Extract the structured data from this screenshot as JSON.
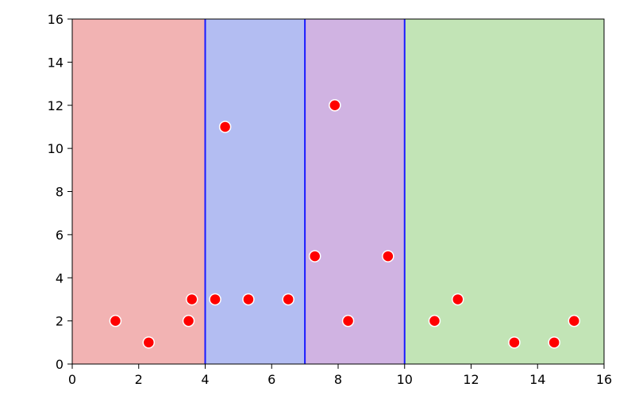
{
  "chart_data": {
    "type": "scatter",
    "title": "",
    "xlabel": "",
    "ylabel": "",
    "xlim": [
      0,
      16
    ],
    "ylim": [
      0,
      16
    ],
    "xticks": [
      0,
      2,
      4,
      6,
      8,
      10,
      12,
      14,
      16
    ],
    "yticks": [
      0,
      2,
      4,
      6,
      8,
      10,
      12,
      14,
      16
    ],
    "grid": false,
    "regions": [
      {
        "x_start": 0,
        "x_end": 4,
        "color": "#f2b3b3"
      },
      {
        "x_start": 4,
        "x_end": 7,
        "color": "#b3bdf2"
      },
      {
        "x_start": 7,
        "x_end": 10,
        "color": "#d0b3e2"
      },
      {
        "x_start": 10,
        "x_end": 16,
        "color": "#c2e4b6"
      }
    ],
    "boundaries": [
      4,
      7,
      10
    ],
    "boundary_color": "#1a1aff",
    "point_color": "#ff0000",
    "points": [
      {
        "x": 1.3,
        "y": 2
      },
      {
        "x": 2.3,
        "y": 1
      },
      {
        "x": 3.5,
        "y": 2
      },
      {
        "x": 3.6,
        "y": 3
      },
      {
        "x": 4.3,
        "y": 3
      },
      {
        "x": 4.6,
        "y": 11
      },
      {
        "x": 5.3,
        "y": 3
      },
      {
        "x": 6.5,
        "y": 3
      },
      {
        "x": 7.3,
        "y": 5
      },
      {
        "x": 7.9,
        "y": 12
      },
      {
        "x": 8.3,
        "y": 2
      },
      {
        "x": 9.5,
        "y": 5
      },
      {
        "x": 10.9,
        "y": 2
      },
      {
        "x": 11.6,
        "y": 3
      },
      {
        "x": 13.3,
        "y": 1
      },
      {
        "x": 14.5,
        "y": 1
      },
      {
        "x": 15.1,
        "y": 2
      }
    ]
  }
}
